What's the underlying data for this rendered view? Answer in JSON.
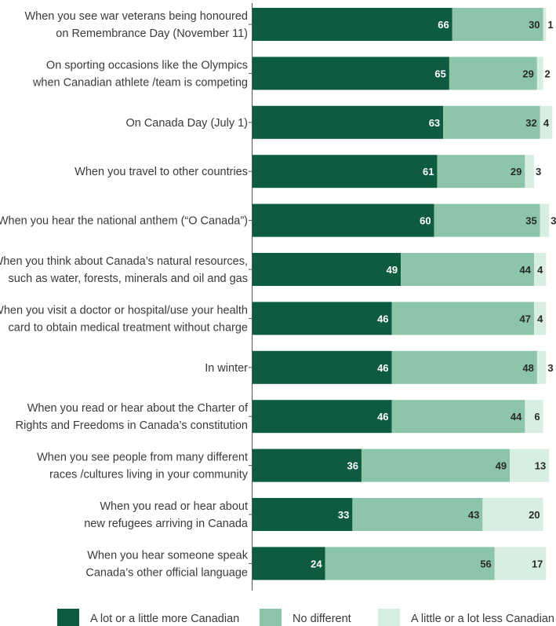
{
  "chart_data": {
    "type": "bar",
    "orientation": "horizontal",
    "stacked": true,
    "categories": [
      [
        "When you see war veterans being honoured",
        "on Remembrance Day (November 11)"
      ],
      [
        "On sporting occasions like the Olympics",
        "when Canadian athlete /team is competing"
      ],
      [
        "On Canada Day (July 1)"
      ],
      [
        "When you travel to other countries"
      ],
      [
        "When you hear the national anthem (“O Canada”)"
      ],
      [
        "When you think about Canada’s natural resources,",
        "such as water, forests, minerals and oil and gas"
      ],
      [
        "When you visit a doctor or hospital/use your health",
        "card to obtain medical treatment without charge"
      ],
      [
        "In winter"
      ],
      [
        "When you read or hear about the Charter of",
        "Rights and Freedoms in Canada’s constitution"
      ],
      [
        "When you see people from many different",
        "races /cultures living in your community"
      ],
      [
        "When you read or hear about",
        "new refugees arriving in Canada"
      ],
      [
        "When you hear someone speak",
        "Canada’s other official language"
      ]
    ],
    "series": [
      {
        "name": "A lot or a little more Canadian",
        "color": "#0e5c3f",
        "label_color": "#ffffff",
        "values": [
          66,
          65,
          63,
          61,
          60,
          49,
          46,
          46,
          46,
          36,
          33,
          24
        ]
      },
      {
        "name": "No different",
        "color": "#8cc5aa",
        "label_color": "#2a2a2a",
        "values": [
          30,
          29,
          32,
          29,
          35,
          44,
          47,
          48,
          44,
          49,
          43,
          56
        ]
      },
      {
        "name": "A little or a lot less Canadian",
        "color": "#d8eee2",
        "label_color": "#2a2a2a",
        "values": [
          1,
          2,
          4,
          3,
          3,
          4,
          4,
          3,
          6,
          13,
          20,
          17
        ]
      }
    ],
    "xlim": [
      0,
      100
    ],
    "legend_position": "bottom",
    "grid": false
  }
}
